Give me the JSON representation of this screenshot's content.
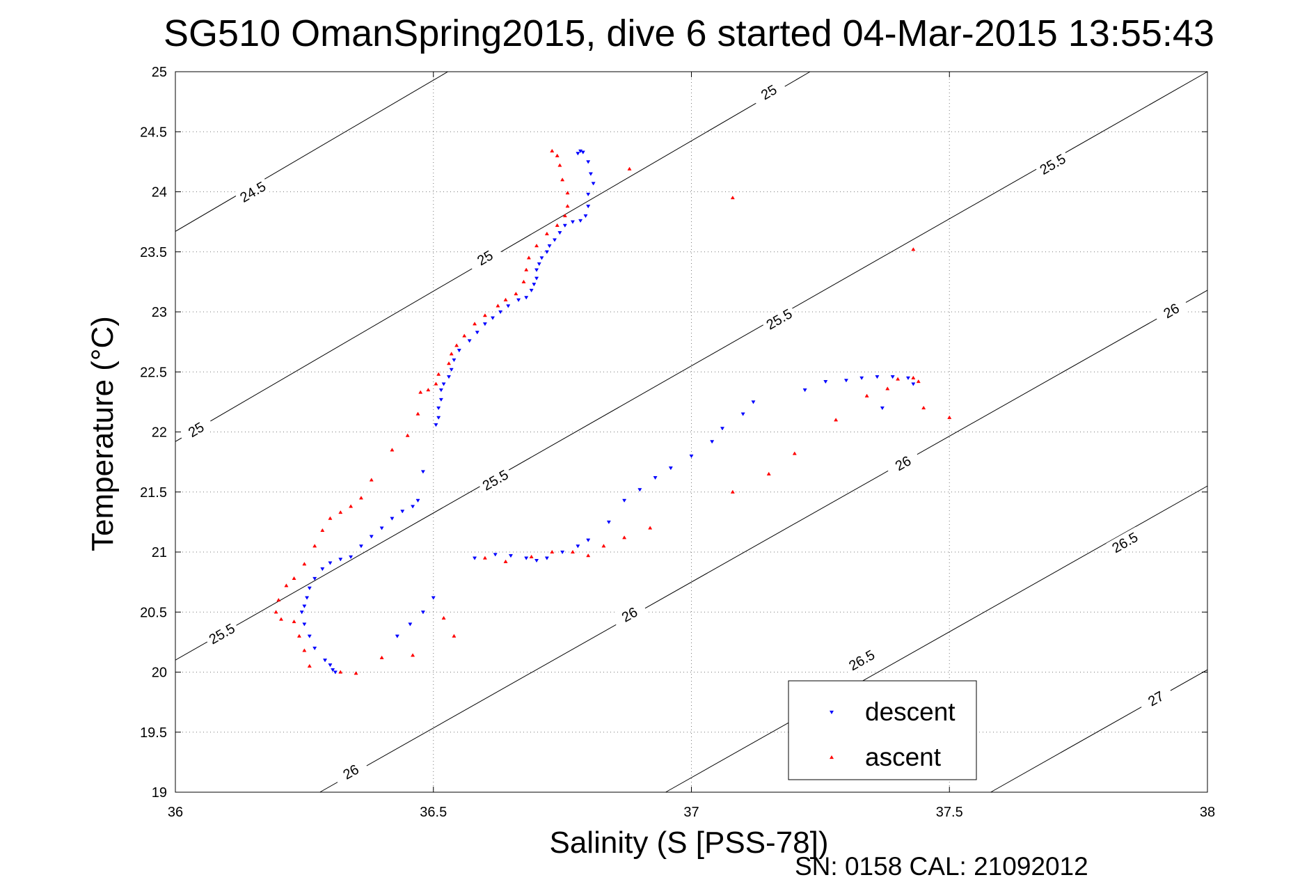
{
  "chart_data": {
    "type": "scatter",
    "title": "SG510 OmanSpring2015, dive 6 started 04-Mar-2015 13:55:43",
    "xlabel": "Salinity (S [PSS-78])",
    "ylabel": "Temperature (°C)",
    "footer": "SN: 0158  CAL: 21092012",
    "xlim": [
      36,
      38
    ],
    "ylim": [
      19,
      25
    ],
    "grid": true,
    "legend_position": "bottom-right",
    "x_ticks": [
      "36",
      "36.5",
      "37",
      "37.5",
      "38"
    ],
    "y_ticks": [
      "19",
      "19.5",
      "20",
      "20.5",
      "21",
      "21.5",
      "22",
      "22.5",
      "23",
      "23.5",
      "24",
      "24.5",
      "25"
    ],
    "isopycnals": [
      {
        "sigma": 24.5,
        "points": [
          [
            36.0,
            23.67
          ],
          [
            36.528,
            25.0
          ]
        ],
        "labels": [
          {
            "text": "24.5",
            "s": 36.15,
            "t": 24.0
          }
        ]
      },
      {
        "sigma": 25.0,
        "points": [
          [
            36.0,
            21.92
          ],
          [
            37.23,
            25.0
          ]
        ],
        "labels": [
          {
            "text": "25",
            "s": 36.04,
            "t": 22.02
          },
          {
            "text": "25",
            "s": 36.6,
            "t": 23.45
          },
          {
            "text": "25",
            "s": 37.15,
            "t": 24.83
          }
        ]
      },
      {
        "sigma": 25.5,
        "points": [
          [
            36.0,
            20.1
          ],
          [
            38.0,
            25.0
          ]
        ],
        "labels": [
          {
            "text": "25.5",
            "s": 36.09,
            "t": 20.32
          },
          {
            "text": "25.5",
            "s": 36.62,
            "t": 21.6
          },
          {
            "text": "25.5",
            "s": 37.17,
            "t": 22.94
          },
          {
            "text": "25.5",
            "s": 37.7,
            "t": 24.23
          }
        ]
      },
      {
        "sigma": 26.0,
        "points": [
          [
            36.28,
            19.0
          ],
          [
            38.0,
            23.18
          ]
        ],
        "labels": [
          {
            "text": "26",
            "s": 36.34,
            "t": 19.17
          },
          {
            "text": "26",
            "s": 36.88,
            "t": 20.48
          },
          {
            "text": "26",
            "s": 37.41,
            "t": 21.74
          },
          {
            "text": "26",
            "s": 37.93,
            "t": 23.01
          }
        ]
      },
      {
        "sigma": 26.5,
        "points": [
          [
            36.95,
            19.0
          ],
          [
            38.0,
            21.55
          ]
        ],
        "labels": [
          {
            "text": "26.5",
            "s": 37.33,
            "t": 20.1
          },
          {
            "text": "26.5",
            "s": 37.84,
            "t": 21.08
          }
        ]
      },
      {
        "sigma": 27.0,
        "points": [
          [
            37.58,
            19.0
          ],
          [
            38.0,
            20.02
          ]
        ],
        "labels": [
          {
            "text": "27",
            "s": 37.9,
            "t": 19.78
          }
        ]
      }
    ],
    "series": [
      {
        "name": "descent",
        "color": "#0000ff",
        "marker": "triangle-down",
        "points": [
          [
            36.785,
            24.34
          ],
          [
            36.79,
            24.33
          ],
          [
            36.78,
            24.32
          ],
          [
            36.8,
            24.25
          ],
          [
            36.805,
            24.15
          ],
          [
            36.81,
            24.07
          ],
          [
            36.8,
            23.98
          ],
          [
            36.8,
            23.88
          ],
          [
            36.795,
            23.8
          ],
          [
            36.785,
            23.76
          ],
          [
            36.77,
            23.75
          ],
          [
            36.755,
            23.72
          ],
          [
            36.745,
            23.66
          ],
          [
            36.735,
            23.6
          ],
          [
            36.725,
            23.55
          ],
          [
            36.72,
            23.5
          ],
          [
            36.71,
            23.45
          ],
          [
            36.705,
            23.4
          ],
          [
            36.7,
            23.35
          ],
          [
            36.7,
            23.28
          ],
          [
            36.695,
            23.23
          ],
          [
            36.69,
            23.18
          ],
          [
            36.68,
            23.12
          ],
          [
            36.665,
            23.1
          ],
          [
            36.645,
            23.05
          ],
          [
            36.63,
            23.0
          ],
          [
            36.615,
            22.95
          ],
          [
            36.6,
            22.9
          ],
          [
            36.585,
            22.83
          ],
          [
            36.57,
            22.76
          ],
          [
            36.55,
            22.68
          ],
          [
            36.54,
            22.6
          ],
          [
            36.535,
            22.52
          ],
          [
            36.53,
            22.46
          ],
          [
            36.52,
            22.4
          ],
          [
            36.515,
            22.35
          ],
          [
            36.515,
            22.27
          ],
          [
            36.51,
            22.2
          ],
          [
            36.51,
            22.12
          ],
          [
            36.505,
            22.06
          ],
          [
            36.48,
            21.67
          ],
          [
            36.47,
            21.43
          ],
          [
            36.46,
            21.38
          ],
          [
            36.44,
            21.34
          ],
          [
            36.42,
            21.28
          ],
          [
            36.4,
            21.2
          ],
          [
            36.38,
            21.13
          ],
          [
            36.36,
            21.05
          ],
          [
            36.34,
            20.96
          ],
          [
            36.32,
            20.94
          ],
          [
            36.3,
            20.91
          ],
          [
            36.285,
            20.86
          ],
          [
            36.27,
            20.78
          ],
          [
            36.26,
            20.7
          ],
          [
            36.255,
            20.62
          ],
          [
            36.25,
            20.55
          ],
          [
            36.245,
            20.5
          ],
          [
            36.25,
            20.4
          ],
          [
            36.26,
            20.3
          ],
          [
            36.27,
            20.2
          ],
          [
            36.29,
            20.1
          ],
          [
            36.3,
            20.06
          ],
          [
            36.305,
            20.02
          ],
          [
            36.31,
            20.0
          ],
          [
            36.43,
            20.3
          ],
          [
            36.455,
            20.4
          ],
          [
            36.48,
            20.5
          ],
          [
            36.5,
            20.62
          ],
          [
            36.58,
            20.95
          ],
          [
            36.62,
            20.98
          ],
          [
            36.65,
            20.97
          ],
          [
            36.68,
            20.95
          ],
          [
            36.7,
            20.93
          ],
          [
            36.72,
            20.95
          ],
          [
            36.75,
            21.0
          ],
          [
            36.78,
            21.05
          ],
          [
            36.8,
            21.1
          ],
          [
            36.84,
            21.25
          ],
          [
            36.87,
            21.43
          ],
          [
            36.9,
            21.52
          ],
          [
            36.93,
            21.62
          ],
          [
            36.96,
            21.7
          ],
          [
            37.0,
            21.8
          ],
          [
            37.04,
            21.92
          ],
          [
            37.06,
            22.03
          ],
          [
            37.1,
            22.15
          ],
          [
            37.12,
            22.25
          ],
          [
            37.22,
            22.35
          ],
          [
            37.26,
            22.42
          ],
          [
            37.3,
            22.43
          ],
          [
            37.33,
            22.45
          ],
          [
            37.36,
            22.46
          ],
          [
            37.39,
            22.46
          ],
          [
            37.42,
            22.45
          ],
          [
            37.43,
            22.4
          ],
          [
            37.37,
            22.2
          ]
        ]
      },
      {
        "name": "ascent",
        "color": "#ff0000",
        "marker": "triangle-up",
        "points": [
          [
            36.73,
            24.34
          ],
          [
            36.74,
            24.3
          ],
          [
            36.745,
            24.22
          ],
          [
            36.75,
            24.1
          ],
          [
            36.76,
            23.99
          ],
          [
            36.76,
            23.88
          ],
          [
            36.755,
            23.8
          ],
          [
            36.74,
            23.72
          ],
          [
            36.72,
            23.65
          ],
          [
            36.7,
            23.55
          ],
          [
            36.685,
            23.45
          ],
          [
            36.68,
            23.35
          ],
          [
            36.675,
            23.25
          ],
          [
            36.66,
            23.15
          ],
          [
            36.64,
            23.1
          ],
          [
            36.625,
            23.05
          ],
          [
            36.6,
            22.97
          ],
          [
            36.58,
            22.9
          ],
          [
            36.56,
            22.8
          ],
          [
            36.545,
            22.72
          ],
          [
            36.535,
            22.65
          ],
          [
            36.53,
            22.57
          ],
          [
            36.51,
            22.48
          ],
          [
            36.505,
            22.4
          ],
          [
            36.49,
            22.35
          ],
          [
            36.475,
            22.33
          ],
          [
            36.47,
            22.15
          ],
          [
            36.45,
            21.97
          ],
          [
            36.42,
            21.85
          ],
          [
            36.38,
            21.6
          ],
          [
            36.36,
            21.45
          ],
          [
            36.34,
            21.38
          ],
          [
            36.32,
            21.33
          ],
          [
            36.3,
            21.28
          ],
          [
            36.285,
            21.18
          ],
          [
            36.27,
            21.05
          ],
          [
            36.25,
            20.9
          ],
          [
            36.23,
            20.78
          ],
          [
            36.215,
            20.72
          ],
          [
            36.2,
            20.6
          ],
          [
            36.195,
            20.5
          ],
          [
            36.205,
            20.44
          ],
          [
            36.23,
            20.42
          ],
          [
            36.24,
            20.3
          ],
          [
            36.25,
            20.18
          ],
          [
            36.26,
            20.05
          ],
          [
            36.32,
            20.0
          ],
          [
            36.35,
            19.99
          ],
          [
            36.4,
            20.12
          ],
          [
            36.46,
            20.14
          ],
          [
            36.52,
            20.45
          ],
          [
            36.54,
            20.3
          ],
          [
            36.6,
            20.95
          ],
          [
            36.64,
            20.92
          ],
          [
            36.69,
            20.96
          ],
          [
            36.73,
            21.0
          ],
          [
            36.77,
            21.0
          ],
          [
            36.8,
            20.97
          ],
          [
            36.83,
            21.05
          ],
          [
            36.87,
            21.12
          ],
          [
            36.92,
            21.2
          ],
          [
            37.08,
            21.5
          ],
          [
            37.15,
            21.65
          ],
          [
            37.2,
            21.82
          ],
          [
            37.28,
            22.1
          ],
          [
            37.34,
            22.3
          ],
          [
            37.38,
            22.36
          ],
          [
            37.4,
            22.44
          ],
          [
            37.43,
            22.45
          ],
          [
            37.44,
            22.42
          ],
          [
            37.45,
            22.2
          ],
          [
            37.5,
            22.12
          ],
          [
            36.88,
            24.19
          ],
          [
            37.08,
            23.95
          ],
          [
            37.43,
            23.52
          ]
        ]
      }
    ]
  }
}
